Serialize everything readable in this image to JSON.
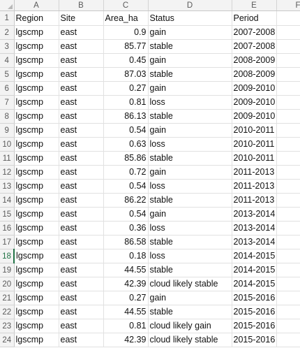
{
  "columns": [
    "A",
    "B",
    "C",
    "D",
    "E",
    "F"
  ],
  "header_row": {
    "row_number": "1",
    "cells": [
      "Region",
      "Site",
      "Area_ha",
      "Status",
      "Period"
    ]
  },
  "selected_row_header": "18",
  "rows": [
    {
      "n": "2",
      "region": "lgscmp",
      "site": "east",
      "area": "0.9",
      "status": "gain",
      "period": "2007-2008"
    },
    {
      "n": "3",
      "region": "lgscmp",
      "site": "east",
      "area": "85.77",
      "status": "stable",
      "period": "2007-2008"
    },
    {
      "n": "4",
      "region": "lgscmp",
      "site": "east",
      "area": "0.45",
      "status": "gain",
      "period": "2008-2009"
    },
    {
      "n": "5",
      "region": "lgscmp",
      "site": "east",
      "area": "87.03",
      "status": "stable",
      "period": "2008-2009"
    },
    {
      "n": "6",
      "region": "lgscmp",
      "site": "east",
      "area": "0.27",
      "status": "gain",
      "period": "2009-2010"
    },
    {
      "n": "7",
      "region": "lgscmp",
      "site": "east",
      "area": "0.81",
      "status": "loss",
      "period": "2009-2010"
    },
    {
      "n": "8",
      "region": "lgscmp",
      "site": "east",
      "area": "86.13",
      "status": "stable",
      "period": "2009-2010"
    },
    {
      "n": "9",
      "region": "lgscmp",
      "site": "east",
      "area": "0.54",
      "status": "gain",
      "period": "2010-2011"
    },
    {
      "n": "10",
      "region": "lgscmp",
      "site": "east",
      "area": "0.63",
      "status": "loss",
      "period": "2010-2011"
    },
    {
      "n": "11",
      "region": "lgscmp",
      "site": "east",
      "area": "85.86",
      "status": "stable",
      "period": "2010-2011"
    },
    {
      "n": "12",
      "region": "lgscmp",
      "site": "east",
      "area": "0.72",
      "status": "gain",
      "period": "2011-2013"
    },
    {
      "n": "13",
      "region": "lgscmp",
      "site": "east",
      "area": "0.54",
      "status": "loss",
      "period": "2011-2013"
    },
    {
      "n": "14",
      "region": "lgscmp",
      "site": "east",
      "area": "86.22",
      "status": "stable",
      "period": "2011-2013"
    },
    {
      "n": "15",
      "region": "lgscmp",
      "site": "east",
      "area": "0.54",
      "status": "gain",
      "period": "2013-2014"
    },
    {
      "n": "16",
      "region": "lgscmp",
      "site": "east",
      "area": "0.36",
      "status": "loss",
      "period": "2013-2014"
    },
    {
      "n": "17",
      "region": "lgscmp",
      "site": "east",
      "area": "86.58",
      "status": "stable",
      "period": "2013-2014"
    },
    {
      "n": "18",
      "region": "lgscmp",
      "site": "east",
      "area": "0.18",
      "status": "loss",
      "period": "2014-2015"
    },
    {
      "n": "19",
      "region": "lgscmp",
      "site": "east",
      "area": "44.55",
      "status": "stable",
      "period": "2014-2015"
    },
    {
      "n": "20",
      "region": "lgscmp",
      "site": "east",
      "area": "42.39",
      "status": "cloud likely stable",
      "period": "2014-2015"
    },
    {
      "n": "21",
      "region": "lgscmp",
      "site": "east",
      "area": "0.27",
      "status": "gain",
      "period": "2015-2016"
    },
    {
      "n": "22",
      "region": "lgscmp",
      "site": "east",
      "area": "44.55",
      "status": "stable",
      "period": "2015-2016"
    },
    {
      "n": "23",
      "region": "lgscmp",
      "site": "east",
      "area": "0.81",
      "status": "cloud likely gain",
      "period": "2015-2016"
    },
    {
      "n": "24",
      "region": "lgscmp",
      "site": "east",
      "area": "42.39",
      "status": "cloud likely stable",
      "period": "2015-2016"
    }
  ]
}
